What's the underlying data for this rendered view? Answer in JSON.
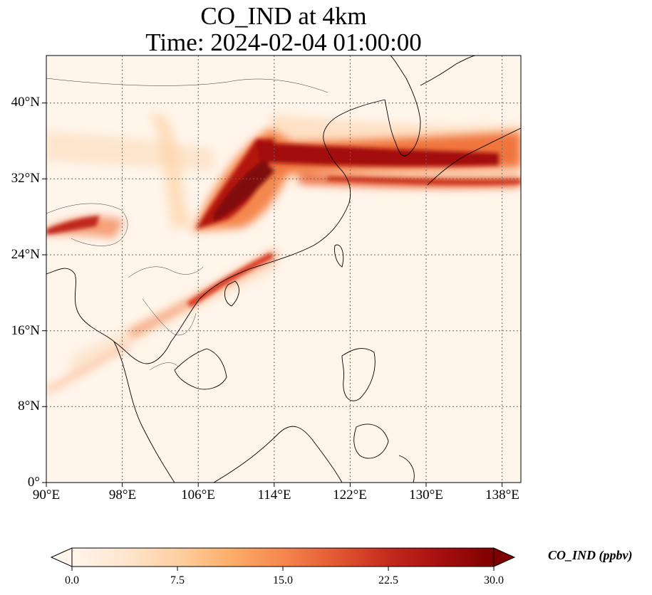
{
  "title": {
    "line1": "CO_IND at 4km",
    "line2": "Time: 2024-02-04 01:00:00"
  },
  "map": {
    "lon_range": [
      90,
      140
    ],
    "lat_range": [
      0,
      45
    ],
    "gridlines": true,
    "lat_ticks": [
      "40°N",
      "32°N",
      "24°N",
      "16°N",
      "8°N",
      "0°"
    ],
    "lon_ticks": [
      "90°E",
      "98°E",
      "106°E",
      "114°E",
      "122°E",
      "130°E",
      "138°E"
    ],
    "variable": "CO_IND",
    "colormap": [
      "#fff5eb",
      "#fee6ce",
      "#fdd0a2",
      "#fdae6b",
      "#fd8d3c",
      "#f16913",
      "#d94801",
      "#a63603",
      "#7f2704"
    ]
  },
  "colorbar": {
    "label": "CO_IND (ppbv)",
    "ticks": [
      "0.0",
      "7.5",
      "15.0",
      "22.5",
      "30.0"
    ],
    "min": 0,
    "max": 30,
    "extend": "both"
  }
}
